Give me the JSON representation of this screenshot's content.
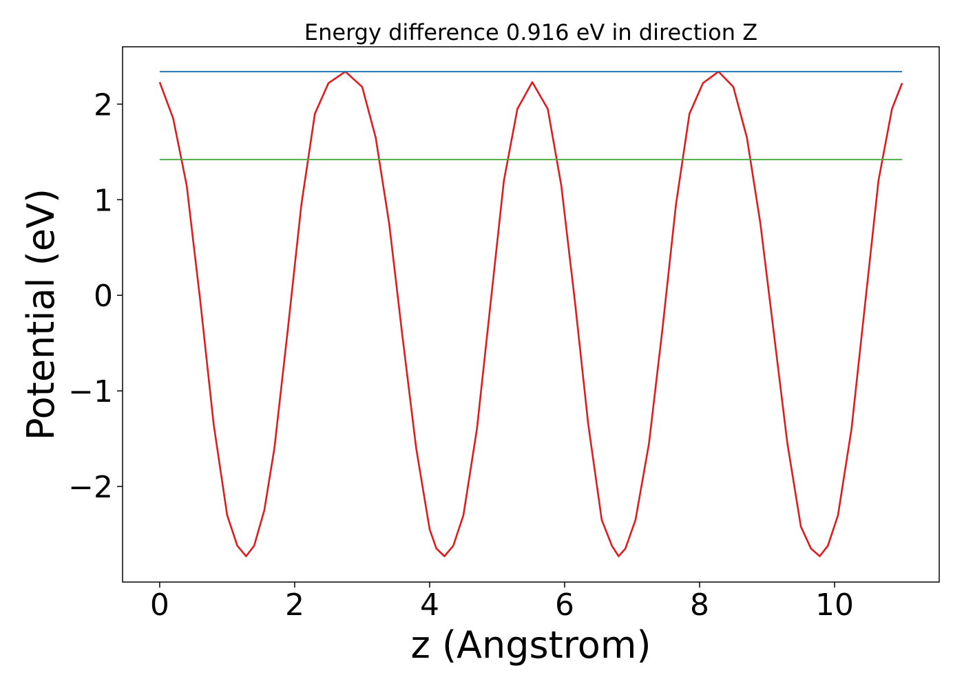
{
  "chart_data": {
    "type": "line",
    "title": "Energy difference 0.916 eV in direction Z",
    "xlabel": "z (Angstrom)",
    "ylabel": "Potential (eV)",
    "xlim": [
      -0.55,
      11.55
    ],
    "ylim": [
      -3.0,
      2.6
    ],
    "xticks": [
      0,
      2,
      4,
      6,
      8,
      10
    ],
    "xtick_labels": [
      "0",
      "2",
      "4",
      "6",
      "8",
      "10"
    ],
    "yticks": [
      -2,
      -1,
      0,
      1,
      2
    ],
    "ytick_labels": [
      "−2",
      "−1",
      "0",
      "1",
      "2"
    ],
    "grid": false,
    "legend": "none",
    "series": [
      {
        "color": "#e31a1c",
        "x": [
          0.0,
          0.2,
          0.4,
          0.6,
          0.8,
          1.0,
          1.15,
          1.28,
          1.4,
          1.55,
          1.7,
          1.9,
          2.1,
          2.3,
          2.5,
          2.75,
          3.0,
          3.2,
          3.4,
          3.6,
          3.8,
          4.0,
          4.1,
          4.22,
          4.35,
          4.5,
          4.7,
          4.9,
          5.1,
          5.3,
          5.52,
          5.75,
          5.95,
          6.15,
          6.35,
          6.55,
          6.7,
          6.8,
          6.9,
          7.05,
          7.25,
          7.45,
          7.65,
          7.85,
          8.05,
          8.28,
          8.5,
          8.7,
          8.9,
          9.1,
          9.3,
          9.5,
          9.65,
          9.78,
          9.9,
          10.05,
          10.25,
          10.45,
          10.65,
          10.85,
          11.0
        ],
        "y": [
          2.23,
          1.85,
          1.15,
          -0.05,
          -1.35,
          -2.3,
          -2.62,
          -2.73,
          -2.62,
          -2.25,
          -1.6,
          -0.35,
          0.95,
          1.9,
          2.22,
          2.34,
          2.18,
          1.65,
          0.75,
          -0.45,
          -1.6,
          -2.45,
          -2.65,
          -2.73,
          -2.62,
          -2.3,
          -1.4,
          -0.1,
          1.2,
          1.95,
          2.23,
          1.95,
          1.15,
          -0.05,
          -1.35,
          -2.35,
          -2.62,
          -2.73,
          -2.65,
          -2.35,
          -1.55,
          -0.35,
          0.95,
          1.9,
          2.22,
          2.34,
          2.18,
          1.65,
          0.75,
          -0.4,
          -1.55,
          -2.42,
          -2.65,
          -2.73,
          -2.62,
          -2.3,
          -1.4,
          -0.1,
          1.2,
          1.95,
          2.22
        ]
      },
      {
        "color": "#1f77b4",
        "x": [
          0.0,
          11.0
        ],
        "y": [
          2.34,
          2.34
        ]
      },
      {
        "color": "#4daf4a",
        "x": [
          0.0,
          11.0
        ],
        "y": [
          1.42,
          1.42
        ]
      }
    ]
  }
}
